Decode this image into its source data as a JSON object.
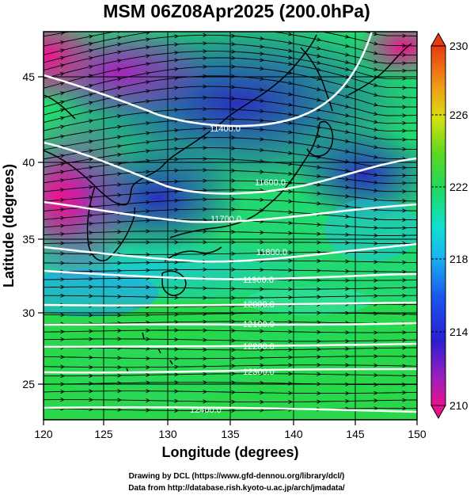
{
  "title": "MSM 06Z08Apr2025 (200.0hPa)",
  "axes": {
    "xlabel": "Longitude (degrees)",
    "ylabel": "Latitude  (degrees)",
    "xlim": [
      120,
      150
    ],
    "ylim": [
      22.5,
      48
    ],
    "xticks": [
      "120",
      "125",
      "130",
      "135",
      "140",
      "145",
      "150"
    ],
    "yticks": [
      "25",
      "30",
      "35",
      "40",
      "45"
    ]
  },
  "colorbar": {
    "ticks": [
      "230",
      "226",
      "222",
      "218",
      "214",
      "210"
    ],
    "range": [
      210,
      230
    ],
    "unit": ""
  },
  "contours": {
    "color": "#ffffff",
    "labels": [
      "11400.0",
      "11600.0",
      "11700.0",
      "11800.0",
      "11900.0",
      "12000.0",
      "12100.0",
      "12200.0",
      "12300.0",
      "12400.0"
    ]
  },
  "credits": {
    "line1": "Drawing by DCL (https://www.gfd-dennou.org/library/dcl/)",
    "line2": "Data from http://database.rish.kyoto-u.ac.jp/arch/jmadata/"
  }
}
